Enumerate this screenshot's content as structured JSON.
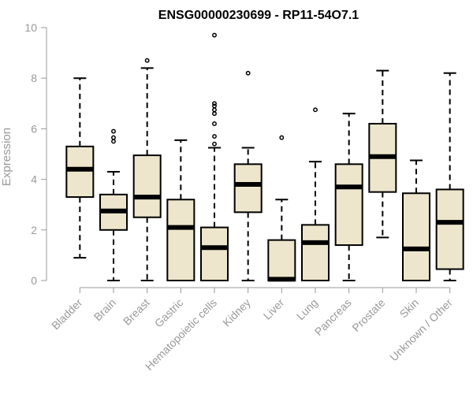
{
  "chart_data": {
    "type": "boxplot",
    "title": "ENSG00000230699 - RP11-54O7.1",
    "xlabel": "",
    "ylabel": "Expression",
    "ylim": [
      0,
      10
    ],
    "yticks": [
      0,
      2,
      4,
      6,
      8,
      10
    ],
    "grid": false,
    "colors": {
      "box_fill": "#ede6cc",
      "stroke": "#000000",
      "axis": "#999999"
    },
    "categories": [
      "Bladder",
      "Brain",
      "Breast",
      "Gastric",
      "Hematopoietic cells",
      "Kidney",
      "Liver",
      "Lung",
      "Pancreas",
      "Prostate",
      "Skin",
      "Unknown / Other"
    ],
    "boxes": [
      {
        "name": "Bladder",
        "min": 0.9,
        "q1": 3.3,
        "median": 4.4,
        "q3": 5.3,
        "max": 8.0,
        "outliers": []
      },
      {
        "name": "Brain",
        "min": 0.0,
        "q1": 2.0,
        "median": 2.75,
        "q3": 3.4,
        "max": 4.3,
        "outliers": [
          5.5,
          5.65,
          5.9
        ]
      },
      {
        "name": "Breast",
        "min": 0.0,
        "q1": 2.5,
        "median": 3.3,
        "q3": 4.95,
        "max": 8.4,
        "outliers": [
          8.7
        ]
      },
      {
        "name": "Gastric",
        "min": 0.0,
        "q1": 0.0,
        "median": 2.1,
        "q3": 3.2,
        "max": 5.55,
        "outliers": []
      },
      {
        "name": "Hematopoietic cells",
        "min": 0.0,
        "q1": 0.0,
        "median": 1.3,
        "q3": 2.1,
        "max": 5.25,
        "outliers": [
          5.4,
          5.7,
          6.2,
          6.6,
          6.75,
          6.9,
          7.0,
          9.7
        ]
      },
      {
        "name": "Kidney",
        "min": 0.0,
        "q1": 2.7,
        "median": 3.8,
        "q3": 4.6,
        "max": 5.25,
        "outliers": [
          8.2
        ]
      },
      {
        "name": "Liver",
        "min": 0.0,
        "q1": 0.0,
        "median": 0.05,
        "q3": 1.6,
        "max": 3.2,
        "outliers": [
          5.65
        ]
      },
      {
        "name": "Lung",
        "min": 0.0,
        "q1": 0.0,
        "median": 1.5,
        "q3": 2.2,
        "max": 4.7,
        "outliers": [
          6.75
        ]
      },
      {
        "name": "Pancreas",
        "min": 0.0,
        "q1": 1.4,
        "median": 3.7,
        "q3": 4.6,
        "max": 6.6,
        "outliers": []
      },
      {
        "name": "Prostate",
        "min": 1.7,
        "q1": 3.5,
        "median": 4.9,
        "q3": 6.2,
        "max": 8.3,
        "outliers": []
      },
      {
        "name": "Skin",
        "min": 0.0,
        "q1": 0.0,
        "median": 1.25,
        "q3": 3.45,
        "max": 4.75,
        "outliers": []
      },
      {
        "name": "Unknown / Other",
        "min": 0.0,
        "q1": 0.45,
        "median": 2.3,
        "q3": 3.6,
        "max": 8.2,
        "outliers": []
      }
    ]
  }
}
